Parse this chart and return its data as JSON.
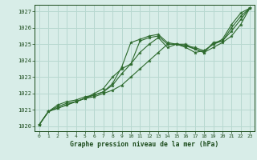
{
  "bg_color": "#d8ede8",
  "grid_color": "#b8d8d0",
  "line_color": "#2d6a2d",
  "text_color": "#1a4a1a",
  "xlabel": "Graphe pression niveau de la mer (hPa)",
  "ylim": [
    1019.7,
    1027.4
  ],
  "xlim": [
    -0.5,
    23.5
  ],
  "yticks": [
    1020,
    1021,
    1022,
    1023,
    1024,
    1025,
    1026,
    1027
  ],
  "xticks": [
    0,
    1,
    2,
    3,
    4,
    5,
    6,
    7,
    8,
    9,
    10,
    11,
    12,
    13,
    14,
    15,
    16,
    17,
    18,
    19,
    20,
    21,
    22,
    23
  ],
  "series": [
    [
      1020.1,
      1020.9,
      1021.2,
      1021.4,
      1021.5,
      1021.7,
      1021.8,
      1022.0,
      1022.2,
      1022.5,
      1023.0,
      1023.5,
      1024.0,
      1024.5,
      1025.0,
      1025.0,
      1025.0,
      1024.7,
      1024.5,
      1025.1,
      1025.2,
      1026.0,
      1026.7,
      1027.2
    ],
    [
      1020.1,
      1020.9,
      1021.3,
      1021.5,
      1021.6,
      1021.8,
      1021.9,
      1022.1,
      1022.5,
      1023.2,
      1023.8,
      1025.2,
      1025.4,
      1025.5,
      1025.0,
      1025.0,
      1024.9,
      1024.8,
      1024.6,
      1025.0,
      1025.2,
      1025.8,
      1026.5,
      1027.2
    ],
    [
      1020.1,
      1020.9,
      1021.1,
      1021.3,
      1021.5,
      1021.7,
      1021.9,
      1022.1,
      1022.6,
      1023.6,
      1025.1,
      1025.3,
      1025.5,
      1025.6,
      1025.1,
      1025.0,
      1024.9,
      1024.7,
      1024.5,
      1024.8,
      1025.1,
      1025.5,
      1026.2,
      1027.2
    ],
    [
      1020.1,
      1020.9,
      1021.1,
      1021.3,
      1021.5,
      1021.7,
      1022.0,
      1022.3,
      1023.0,
      1023.5,
      1023.8,
      1024.5,
      1025.0,
      1025.4,
      1024.8,
      1025.0,
      1024.8,
      1024.5,
      1024.6,
      1025.0,
      1025.3,
      1026.2,
      1026.9,
      1027.2
    ]
  ]
}
